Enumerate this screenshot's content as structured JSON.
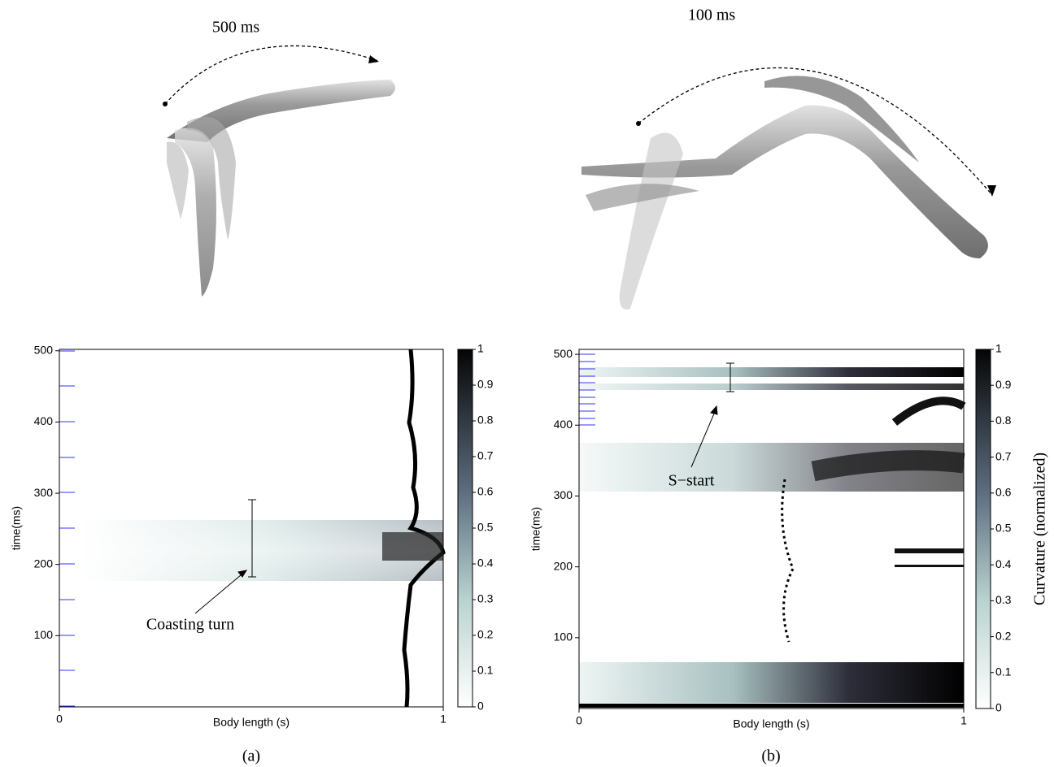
{
  "figure": {
    "panels": [
      {
        "duration": "500 ms",
        "annotation": "Coasting turn",
        "caption": "(a)",
        "x_label": "Body length (s)",
        "y_label": "time(ms)",
        "xlim": [
          0,
          1
        ],
        "xticks": [
          0,
          1
        ],
        "ylim": [
          0,
          502
        ],
        "yticks": [
          100,
          200,
          300,
          400,
          500
        ],
        "colorbar_lim": [
          0,
          1
        ],
        "colorbar_ticks": [
          0,
          0.1,
          0.2,
          0.3,
          0.4,
          0.5,
          0.6,
          0.7,
          0.8,
          0.9,
          1
        ]
      },
      {
        "duration": "100 ms",
        "annotation": "S−start",
        "caption": "(b)",
        "x_label": "Body length (s)",
        "y_label": "time(ms)",
        "xlim": [
          0,
          1
        ],
        "xticks": [
          0,
          1
        ],
        "ylim": [
          0,
          507
        ],
        "yticks": [
          100,
          200,
          300,
          400,
          500
        ],
        "colorbar_lim": [
          0,
          1
        ],
        "colorbar_ticks": [
          0,
          0.1,
          0.2,
          0.3,
          0.4,
          0.5,
          0.6,
          0.7,
          0.8,
          0.9,
          1
        ],
        "colorbar_label": "Curvature (normalized)"
      }
    ]
  }
}
